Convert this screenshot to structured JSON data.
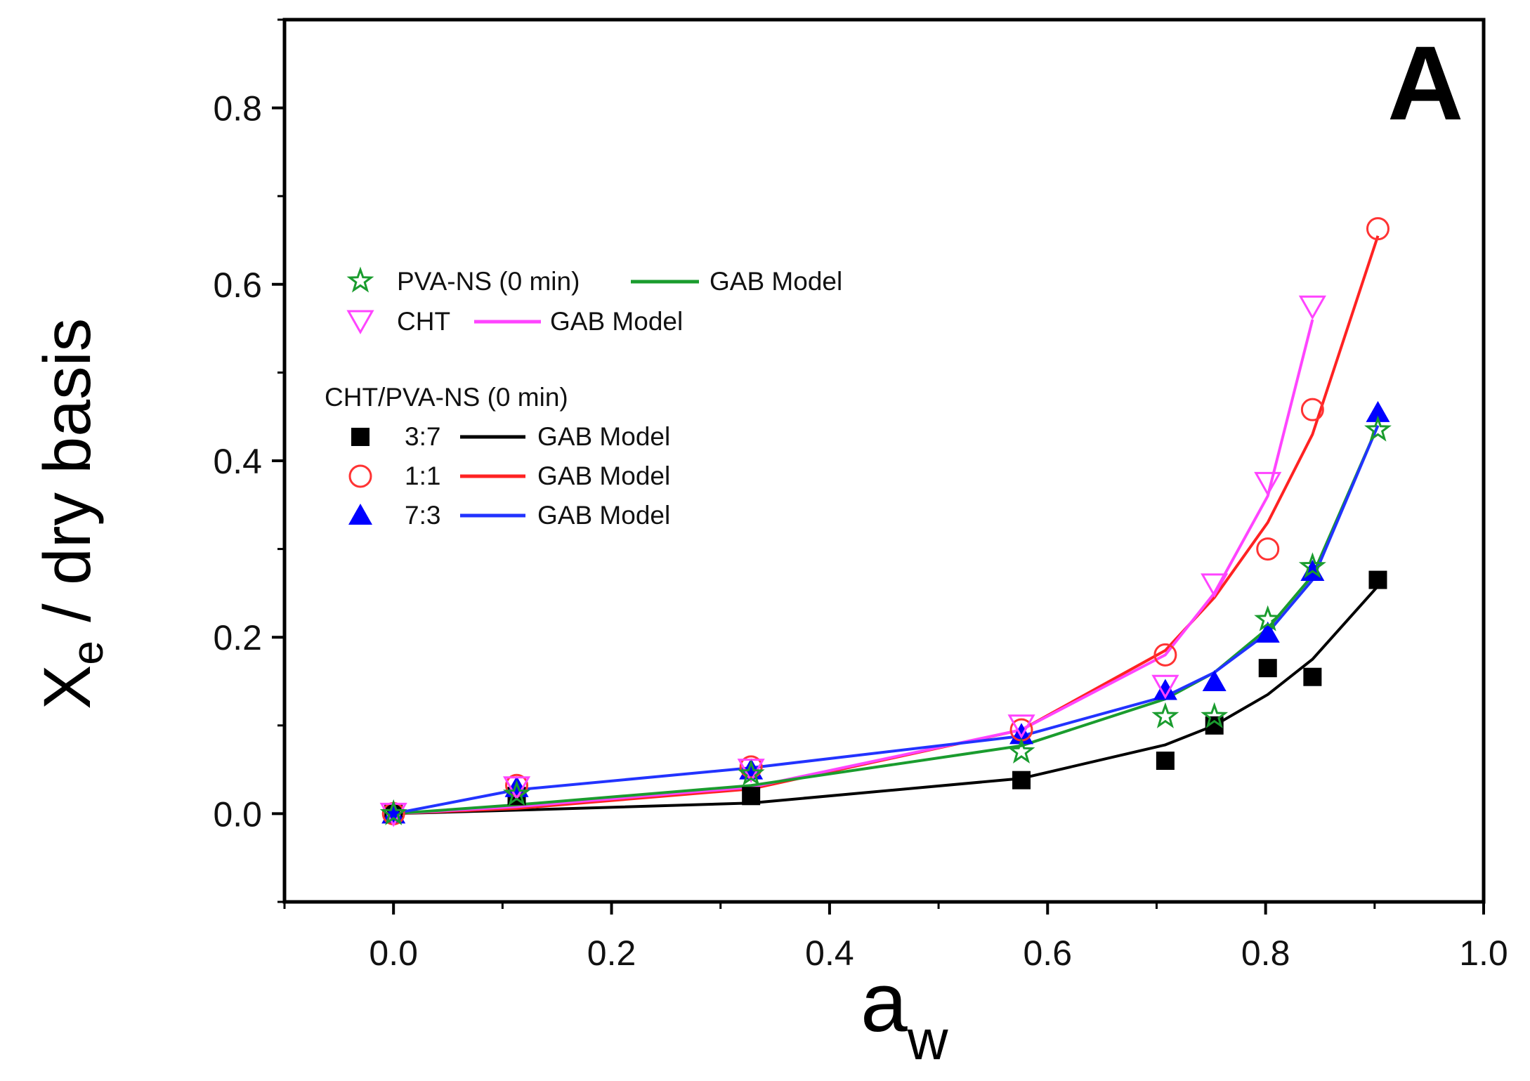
{
  "chart_data": {
    "type": "scatter",
    "panel_label": "A",
    "xlabel": "a",
    "xlabel_sub": "w",
    "ylabel": "X",
    "ylabel_sub": "e",
    "ylabel_rest": " / dry basis",
    "xlim": [
      -0.1,
      1.0
    ],
    "ylim": [
      -0.1,
      0.9
    ],
    "xticks": [
      0.0,
      0.2,
      0.4,
      0.6,
      0.8,
      1.0
    ],
    "yticks": [
      0.0,
      0.2,
      0.4,
      0.6,
      0.8
    ],
    "xtick_labels": [
      "0.0",
      "0.2",
      "0.4",
      "0.6",
      "0.8",
      "1.0"
    ],
    "ytick_labels": [
      "0.0",
      "0.2",
      "0.4",
      "0.6",
      "0.8"
    ],
    "series": [
      {
        "name": "PVA-NS (0 min)",
        "marker": "star",
        "color": "#1a9c2e",
        "x": [
          0.0,
          0.113,
          0.328,
          0.576,
          0.708,
          0.753,
          0.802,
          0.843,
          0.903
        ],
        "y": [
          0.0,
          0.022,
          0.045,
          0.07,
          0.11,
          0.11,
          0.22,
          0.28,
          0.435
        ],
        "fit_name": "GAB Model",
        "fit_color": "#1a9c2e",
        "fit_x": [
          0.0,
          0.113,
          0.328,
          0.576,
          0.708,
          0.753,
          0.802,
          0.843,
          0.903
        ],
        "fit_y": [
          0.0,
          0.01,
          0.032,
          0.077,
          0.13,
          0.16,
          0.21,
          0.27,
          0.44
        ]
      },
      {
        "name": "CHT",
        "marker": "triangle-down-open",
        "color": "#ff44ff",
        "x": [
          0.0,
          0.113,
          0.328,
          0.576,
          0.708,
          0.753,
          0.802,
          0.843
        ],
        "y": [
          0.0,
          0.03,
          0.05,
          0.1,
          0.145,
          0.26,
          0.375,
          0.575
        ],
        "fit_name": "GAB Model",
        "fit_color": "#ff44ff",
        "fit_x": [
          0.0,
          0.113,
          0.328,
          0.576,
          0.708,
          0.753,
          0.802,
          0.843
        ],
        "fit_y": [
          0.0,
          0.008,
          0.03,
          0.095,
          0.18,
          0.25,
          0.36,
          0.56
        ]
      },
      {
        "name": "3:7",
        "marker": "square",
        "color": "#000000",
        "x": [
          0.0,
          0.113,
          0.328,
          0.576,
          0.708,
          0.753,
          0.802,
          0.843,
          0.903
        ],
        "y": [
          0.0,
          0.02,
          0.02,
          0.038,
          0.06,
          0.1,
          0.165,
          0.155,
          0.265
        ],
        "fit_name": "GAB Model",
        "fit_color": "#000000",
        "fit_x": [
          0.0,
          0.113,
          0.328,
          0.576,
          0.708,
          0.753,
          0.802,
          0.843,
          0.903
        ],
        "fit_y": [
          0.0,
          0.004,
          0.012,
          0.04,
          0.078,
          0.1,
          0.135,
          0.175,
          0.258
        ]
      },
      {
        "name": "1:1",
        "marker": "circle-open",
        "color": "#ff3333",
        "x": [
          0.0,
          0.113,
          0.328,
          0.576,
          0.708,
          0.802,
          0.843,
          0.903
        ],
        "y": [
          0.0,
          0.032,
          0.053,
          0.095,
          0.18,
          0.3,
          0.458,
          0.663
        ],
        "fit_name": "GAB Model",
        "fit_color": "#ff2222",
        "fit_x": [
          0.0,
          0.113,
          0.328,
          0.576,
          0.708,
          0.753,
          0.802,
          0.843,
          0.903
        ],
        "fit_y": [
          0.0,
          0.006,
          0.028,
          0.095,
          0.185,
          0.245,
          0.33,
          0.43,
          0.655
        ]
      },
      {
        "name": "7:3",
        "marker": "triangle-up",
        "color": "#0000ff",
        "x": [
          0.0,
          0.113,
          0.328,
          0.576,
          0.708,
          0.753,
          0.802,
          0.843,
          0.903
        ],
        "y": [
          0.0,
          0.03,
          0.05,
          0.09,
          0.14,
          0.15,
          0.205,
          0.275,
          0.455
        ],
        "fit_name": "GAB Model",
        "fit_color": "#2233ff",
        "fit_x": [
          0.0,
          0.113,
          0.328,
          0.576,
          0.708,
          0.753,
          0.802,
          0.843,
          0.903
        ],
        "fit_y": [
          0.0,
          0.027,
          0.052,
          0.088,
          0.133,
          0.16,
          0.205,
          0.265,
          0.44
        ]
      }
    ],
    "legend": {
      "group_title": "CHT/PVA-NS (0 min)",
      "entries": [
        {
          "label": "PVA-NS (0 min)",
          "fit_label": "GAB Model"
        },
        {
          "label": "CHT",
          "fit_label": "GAB Model"
        },
        {
          "label": "3:7",
          "fit_label": "GAB Model"
        },
        {
          "label": "1:1",
          "fit_label": "GAB Model"
        },
        {
          "label": "7:3",
          "fit_label": "GAB Model"
        }
      ]
    }
  }
}
